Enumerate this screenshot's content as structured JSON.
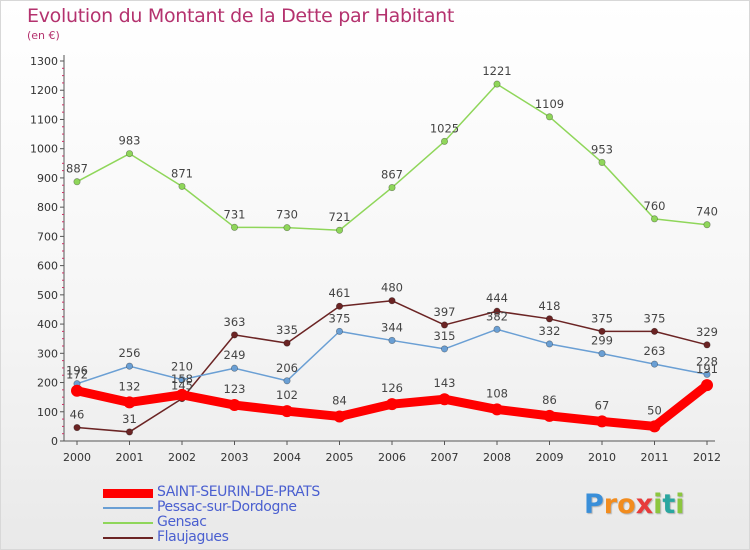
{
  "chart_data": {
    "type": "line",
    "title": "Evolution du Montant de la Dette par Habitant",
    "subtitle": "(en €)",
    "x": [
      "2000",
      "2001",
      "2002",
      "2003",
      "2004",
      "2005",
      "2006",
      "2007",
      "2008",
      "2009",
      "2010",
      "2011",
      "2012"
    ],
    "yticks": [
      "0",
      "100",
      "200",
      "300",
      "400",
      "500",
      "600",
      "700",
      "800",
      "900",
      "1000",
      "1100",
      "1200",
      "1300"
    ],
    "ylim": [
      0,
      1300
    ],
    "grid": false,
    "legend_position": "bottom-left",
    "series": [
      {
        "name": "SAINT-SEURIN-DE-PRATS",
        "color": "#ff0000",
        "values": [
          172,
          132,
          158,
          123,
          102,
          84,
          126,
          143,
          108,
          86,
          67,
          50,
          191
        ],
        "labels": [
          "172",
          "132",
          "158",
          "123",
          "102",
          "84",
          "126",
          "143",
          "108",
          "86",
          "67",
          "50",
          "191"
        ]
      },
      {
        "name": "Pessac-sur-Dordogne",
        "color": "#6a9fd4",
        "values": [
          196,
          256,
          210,
          249,
          206,
          375,
          344,
          315,
          382,
          332,
          299,
          263,
          228
        ],
        "labels": [
          "196",
          "256",
          "210",
          "249",
          "206",
          "375",
          "344",
          "315",
          "382",
          "332",
          "299",
          "263",
          "228"
        ]
      },
      {
        "name": "Gensac",
        "color": "#8fd65a",
        "values": [
          887,
          983,
          871,
          731,
          730,
          721,
          867,
          1025,
          1221,
          1109,
          953,
          760,
          740
        ],
        "labels": [
          "887",
          "983",
          "871",
          "731",
          "730",
          "721",
          "867",
          "1025",
          "1221",
          "1109",
          "953",
          "760",
          "740"
        ]
      },
      {
        "name": "Flaujagues",
        "color": "#6b2424",
        "values": [
          46,
          31,
          145,
          363,
          335,
          461,
          480,
          397,
          444,
          418,
          375,
          375,
          329
        ],
        "labels": [
          "46",
          "31",
          "145",
          "363",
          "335",
          "461",
          "480",
          "397",
          "444",
          "418",
          "375",
          "375",
          "329"
        ]
      }
    ]
  },
  "brand": {
    "letters": [
      "P",
      "r",
      "o",
      "x",
      "i",
      "t",
      "i"
    ],
    "colors": [
      "#3a8fd9",
      "#f28c1e",
      "#f28c1e",
      "#e73b3b",
      "#8cc63f",
      "#2aa6a0",
      "#8cc63f"
    ]
  }
}
